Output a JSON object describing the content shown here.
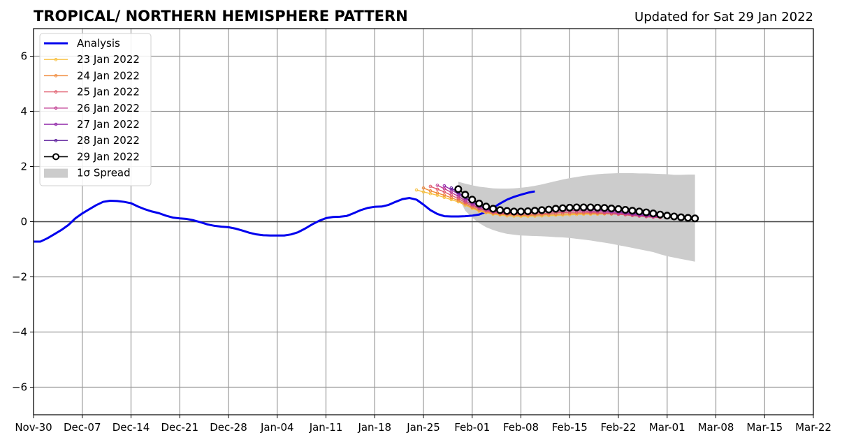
{
  "chart_data": {
    "type": "line",
    "title": "TROPICAL/ NORTHERN HEMISPHERE PATTERN",
    "subtitle": "Updated for Sat 29 Jan 2022",
    "xlabel": "",
    "ylabel": "",
    "xlim": [
      "2021-11-30",
      "2022-03-22"
    ],
    "ylim": [
      -7,
      7
    ],
    "grid": true,
    "legend_position": "top-left",
    "x_ticks": [
      {
        "date": "2021-11-30",
        "label": "Nov-30"
      },
      {
        "date": "2021-12-07",
        "label": "Dec-07"
      },
      {
        "date": "2021-12-14",
        "label": "Dec-14"
      },
      {
        "date": "2021-12-21",
        "label": "Dec-21"
      },
      {
        "date": "2021-12-28",
        "label": "Dec-28"
      },
      {
        "date": "2022-01-04",
        "label": "Jan-04"
      },
      {
        "date": "2022-01-11",
        "label": "Jan-11"
      },
      {
        "date": "2022-01-18",
        "label": "Jan-18"
      },
      {
        "date": "2022-01-25",
        "label": "Jan-25"
      },
      {
        "date": "2022-02-01",
        "label": "Feb-01"
      },
      {
        "date": "2022-02-08",
        "label": "Feb-08"
      },
      {
        "date": "2022-02-15",
        "label": "Feb-15"
      },
      {
        "date": "2022-02-22",
        "label": "Feb-22"
      },
      {
        "date": "2022-03-01",
        "label": "Mar-01"
      },
      {
        "date": "2022-03-08",
        "label": "Mar-08"
      },
      {
        "date": "2022-03-15",
        "label": "Mar-15"
      },
      {
        "date": "2022-03-22",
        "label": "Mar-22"
      }
    ],
    "y_ticks": [
      {
        "value": 6,
        "label": "6"
      },
      {
        "value": 4,
        "label": "4"
      },
      {
        "value": 2,
        "label": "2"
      },
      {
        "value": 0,
        "label": "0"
      },
      {
        "value": -2,
        "label": "−2"
      },
      {
        "value": -4,
        "label": "−4"
      },
      {
        "value": -6,
        "label": "−6"
      }
    ],
    "analysis": {
      "name": "Analysis",
      "color": "#0000ee",
      "start_date": "2021-11-30",
      "values": [
        -0.72,
        -0.72,
        -0.6,
        -0.45,
        -0.3,
        -0.12,
        0.12,
        0.3,
        0.45,
        0.6,
        0.72,
        0.76,
        0.75,
        0.72,
        0.67,
        0.55,
        0.45,
        0.37,
        0.31,
        0.22,
        0.15,
        0.12,
        0.1,
        0.05,
        -0.02,
        -0.1,
        -0.15,
        -0.18,
        -0.2,
        -0.25,
        -0.32,
        -0.4,
        -0.46,
        -0.49,
        -0.5,
        -0.5,
        -0.5,
        -0.46,
        -0.38,
        -0.25,
        -0.1,
        0.03,
        0.13,
        0.17,
        0.18,
        0.21,
        0.31,
        0.42,
        0.5,
        0.54,
        0.55,
        0.61,
        0.72,
        0.82,
        0.86,
        0.8,
        0.62,
        0.42,
        0.28,
        0.2,
        0.19,
        0.19,
        0.2,
        0.22,
        0.26,
        0.36,
        0.5,
        0.66,
        0.8,
        0.9,
        0.98,
        1.05,
        1.1
      ]
    },
    "forecasts": [
      {
        "name": "23 Jan 2022",
        "color": "#f8c140",
        "start_date": "2022-01-24",
        "values": [
          1.15,
          1.08,
          1.02,
          0.96,
          0.88,
          0.8,
          0.72,
          0.6,
          0.48,
          0.38,
          0.32,
          0.27,
          0.24,
          0.21,
          0.2,
          0.19,
          0.19,
          0.2,
          0.21,
          0.22,
          0.23,
          0.24,
          0.25,
          0.26,
          0.27,
          0.27,
          0.27,
          0.28,
          0.28,
          0.27,
          0.26,
          0.25,
          0.23,
          0.21,
          0.19,
          0.17
        ]
      },
      {
        "name": "24 Jan 2022",
        "color": "#f08a3c",
        "start_date": "2022-01-25",
        "values": [
          1.22,
          1.12,
          1.04,
          0.96,
          0.87,
          0.77,
          0.64,
          0.52,
          0.42,
          0.35,
          0.3,
          0.27,
          0.25,
          0.24,
          0.23,
          0.23,
          0.24,
          0.25,
          0.26,
          0.27,
          0.28,
          0.29,
          0.3,
          0.3,
          0.3,
          0.3,
          0.29,
          0.28,
          0.27,
          0.25,
          0.23,
          0.21,
          0.19,
          0.17,
          0.15
        ]
      },
      {
        "name": "25 Jan 2022",
        "color": "#e05a6a",
        "start_date": "2022-01-26",
        "values": [
          1.28,
          1.18,
          1.08,
          0.96,
          0.84,
          0.7,
          0.57,
          0.47,
          0.39,
          0.33,
          0.3,
          0.28,
          0.27,
          0.27,
          0.27,
          0.28,
          0.29,
          0.31,
          0.32,
          0.33,
          0.34,
          0.34,
          0.34,
          0.33,
          0.32,
          0.31,
          0.29,
          0.27,
          0.25,
          0.22,
          0.2,
          0.18,
          0.16,
          0.15
        ]
      },
      {
        "name": "26 Jan 2022",
        "color": "#c03a90",
        "start_date": "2022-01-27",
        "values": [
          1.32,
          1.2,
          1.06,
          0.92,
          0.76,
          0.62,
          0.5,
          0.42,
          0.36,
          0.33,
          0.31,
          0.31,
          0.31,
          0.32,
          0.33,
          0.35,
          0.37,
          0.38,
          0.39,
          0.4,
          0.4,
          0.39,
          0.38,
          0.37,
          0.35,
          0.33,
          0.3,
          0.28,
          0.25,
          0.22,
          0.2,
          0.18,
          0.16
        ]
      },
      {
        "name": "27 Jan 2022",
        "color": "#9026a8",
        "start_date": "2022-01-28",
        "values": [
          1.3,
          1.16,
          1.0,
          0.84,
          0.68,
          0.55,
          0.46,
          0.4,
          0.37,
          0.35,
          0.35,
          0.36,
          0.37,
          0.39,
          0.41,
          0.43,
          0.45,
          0.46,
          0.46,
          0.46,
          0.45,
          0.44,
          0.42,
          0.4,
          0.37,
          0.34,
          0.31,
          0.28,
          0.25,
          0.22,
          0.2,
          0.18
        ]
      },
      {
        "name": "28 Jan 2022",
        "color": "#5a1a9a",
        "start_date": "2022-01-29",
        "values": [
          1.22,
          1.06,
          0.88,
          0.72,
          0.59,
          0.49,
          0.43,
          0.4,
          0.39,
          0.39,
          0.4,
          0.41,
          0.43,
          0.45,
          0.47,
          0.49,
          0.5,
          0.51,
          0.51,
          0.5,
          0.49,
          0.47,
          0.45,
          0.42,
          0.39,
          0.36,
          0.32,
          0.29,
          0.26,
          0.23,
          0.2
        ]
      }
    ],
    "current_forecast": {
      "name": "29 Jan 2022",
      "color": "#000000",
      "marker_fill": "#ffffff",
      "start_date": "2022-01-30",
      "values": [
        1.18,
        0.98,
        0.8,
        0.66,
        0.55,
        0.47,
        0.42,
        0.39,
        0.37,
        0.37,
        0.38,
        0.4,
        0.42,
        0.44,
        0.47,
        0.49,
        0.51,
        0.52,
        0.52,
        0.52,
        0.51,
        0.5,
        0.48,
        0.46,
        0.43,
        0.4,
        0.37,
        0.34,
        0.3,
        0.26,
        0.22,
        0.19,
        0.16,
        0.14,
        0.12
      ]
    },
    "spread": {
      "name": "1σ Spread",
      "color": "#cccccc",
      "start_date": "2022-01-30",
      "upper": [
        1.45,
        1.38,
        1.32,
        1.27,
        1.24,
        1.21,
        1.2,
        1.2,
        1.21,
        1.23,
        1.26,
        1.3,
        1.35,
        1.41,
        1.47,
        1.53,
        1.58,
        1.62,
        1.66,
        1.69,
        1.72,
        1.74,
        1.75,
        1.76,
        1.76,
        1.76,
        1.75,
        1.75,
        1.74,
        1.73,
        1.72,
        1.7,
        1.7,
        1.71,
        1.71
      ],
      "lower": [
        0.9,
        0.4,
        0.15,
        -0.05,
        -0.2,
        -0.3,
        -0.38,
        -0.44,
        -0.47,
        -0.5,
        -0.51,
        -0.52,
        -0.53,
        -0.54,
        -0.56,
        -0.57,
        -0.59,
        -0.62,
        -0.65,
        -0.68,
        -0.72,
        -0.76,
        -0.8,
        -0.85,
        -0.9,
        -0.95,
        -1.0,
        -1.05,
        -1.1,
        -1.18,
        -1.25,
        -1.3,
        -1.35,
        -1.4,
        -1.45
      ]
    }
  }
}
